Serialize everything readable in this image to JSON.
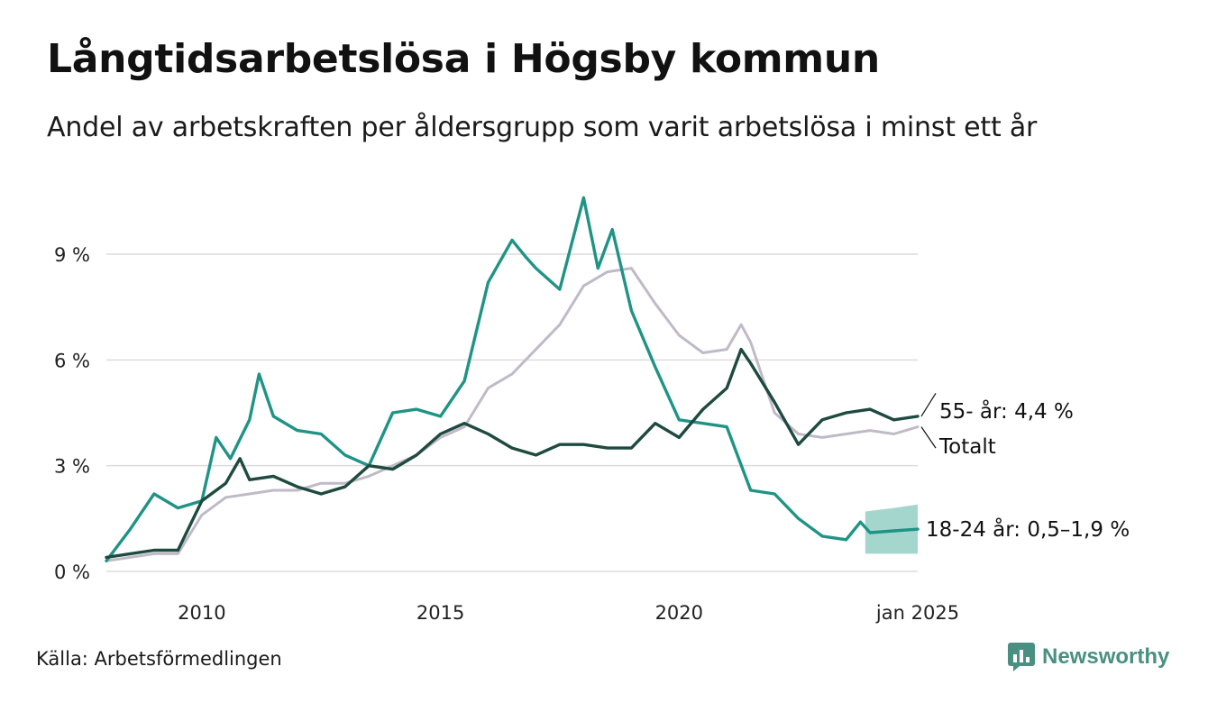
{
  "title": "Långtidsarbetslösa i Högsby kommun",
  "subtitle": "Andel av arbetskraften per åldersgrupp som varit arbetslösa i minst ett år",
  "source": "Källa: Arbetsförmedlingen",
  "brand": {
    "name": "Newsworthy",
    "icon": "newsworthy-logo-icon",
    "color": "#4a9082"
  },
  "chart_data": {
    "type": "line",
    "title": "Långtidsarbetslösa i Högsby kommun",
    "subtitle": "Andel av arbetskraften per åldersgrupp som varit arbetslösa i minst ett år",
    "xlabel": "",
    "ylabel": "",
    "x_unit": "year",
    "xlim": [
      2008.0,
      2025.0
    ],
    "ylim": [
      0,
      11
    ],
    "y_ticks": [
      {
        "value": 0,
        "label": "0 %"
      },
      {
        "value": 3,
        "label": "3 %"
      },
      {
        "value": 6,
        "label": "6 %"
      },
      {
        "value": 9,
        "label": "9 %"
      }
    ],
    "x_ticks": [
      {
        "value": 2010,
        "label": "2010"
      },
      {
        "value": 2015,
        "label": "2015"
      },
      {
        "value": 2020,
        "label": "2020"
      },
      {
        "value": 2025,
        "label": "jan 2025"
      }
    ],
    "grid": "horizontal",
    "legend": "end-of-line labels",
    "series": [
      {
        "name": "Totalt",
        "label": "Totalt",
        "color": "#c0bac8",
        "points": [
          [
            2008.0,
            0.3
          ],
          [
            2008.5,
            0.4
          ],
          [
            2009.0,
            0.5
          ],
          [
            2009.5,
            0.5
          ],
          [
            2010.0,
            1.6
          ],
          [
            2010.5,
            2.1
          ],
          [
            2011.0,
            2.2
          ],
          [
            2011.5,
            2.3
          ],
          [
            2012.0,
            2.3
          ],
          [
            2012.5,
            2.5
          ],
          [
            2013.0,
            2.5
          ],
          [
            2013.5,
            2.7
          ],
          [
            2014.0,
            3.0
          ],
          [
            2014.5,
            3.3
          ],
          [
            2015.0,
            3.8
          ],
          [
            2015.5,
            4.1
          ],
          [
            2016.0,
            5.2
          ],
          [
            2016.5,
            5.6
          ],
          [
            2017.0,
            6.3
          ],
          [
            2017.5,
            7.0
          ],
          [
            2018.0,
            8.1
          ],
          [
            2018.5,
            8.5
          ],
          [
            2019.0,
            8.6
          ],
          [
            2019.5,
            7.6
          ],
          [
            2020.0,
            6.7
          ],
          [
            2020.5,
            6.2
          ],
          [
            2021.0,
            6.3
          ],
          [
            2021.3,
            7.0
          ],
          [
            2021.5,
            6.5
          ],
          [
            2022.0,
            4.5
          ],
          [
            2022.5,
            3.9
          ],
          [
            2023.0,
            3.8
          ],
          [
            2023.5,
            3.9
          ],
          [
            2024.0,
            4.0
          ],
          [
            2024.5,
            3.9
          ],
          [
            2025.0,
            4.1
          ]
        ]
      },
      {
        "name": "55- år",
        "label": "55- år: 4,4 %",
        "color": "#1e4a3f",
        "points": [
          [
            2008.0,
            0.4
          ],
          [
            2008.5,
            0.5
          ],
          [
            2009.0,
            0.6
          ],
          [
            2009.5,
            0.6
          ],
          [
            2010.0,
            2.0
          ],
          [
            2010.5,
            2.5
          ],
          [
            2010.8,
            3.2
          ],
          [
            2011.0,
            2.6
          ],
          [
            2011.5,
            2.7
          ],
          [
            2012.0,
            2.4
          ],
          [
            2012.5,
            2.2
          ],
          [
            2013.0,
            2.4
          ],
          [
            2013.5,
            3.0
          ],
          [
            2014.0,
            2.9
          ],
          [
            2014.5,
            3.3
          ],
          [
            2015.0,
            3.9
          ],
          [
            2015.5,
            4.2
          ],
          [
            2016.0,
            3.9
          ],
          [
            2016.5,
            3.5
          ],
          [
            2017.0,
            3.3
          ],
          [
            2017.5,
            3.6
          ],
          [
            2018.0,
            3.6
          ],
          [
            2018.5,
            3.5
          ],
          [
            2019.0,
            3.5
          ],
          [
            2019.5,
            4.2
          ],
          [
            2020.0,
            3.8
          ],
          [
            2020.5,
            4.6
          ],
          [
            2021.0,
            5.2
          ],
          [
            2021.3,
            6.3
          ],
          [
            2021.5,
            5.9
          ],
          [
            2022.0,
            4.8
          ],
          [
            2022.5,
            3.6
          ],
          [
            2023.0,
            4.3
          ],
          [
            2023.5,
            4.5
          ],
          [
            2024.0,
            4.6
          ],
          [
            2024.5,
            4.3
          ],
          [
            2025.0,
            4.4
          ]
        ]
      },
      {
        "name": "18-24 år",
        "label": "18-24 år: 0,5–1,9 %",
        "color": "#1f9485",
        "band_color": "#94cfc5",
        "points": [
          [
            2008.0,
            0.3
          ],
          [
            2008.5,
            1.2
          ],
          [
            2009.0,
            2.2
          ],
          [
            2009.5,
            1.8
          ],
          [
            2010.0,
            2.0
          ],
          [
            2010.3,
            3.8
          ],
          [
            2010.6,
            3.2
          ],
          [
            2011.0,
            4.3
          ],
          [
            2011.2,
            5.6
          ],
          [
            2011.5,
            4.4
          ],
          [
            2012.0,
            4.0
          ],
          [
            2012.5,
            3.9
          ],
          [
            2013.0,
            3.3
          ],
          [
            2013.5,
            3.0
          ],
          [
            2014.0,
            4.5
          ],
          [
            2014.5,
            4.6
          ],
          [
            2015.0,
            4.4
          ],
          [
            2015.5,
            5.4
          ],
          [
            2016.0,
            8.2
          ],
          [
            2016.5,
            9.4
          ],
          [
            2016.8,
            8.9
          ],
          [
            2017.0,
            8.6
          ],
          [
            2017.5,
            8.0
          ],
          [
            2018.0,
            10.6
          ],
          [
            2018.3,
            8.6
          ],
          [
            2018.6,
            9.7
          ],
          [
            2019.0,
            7.4
          ],
          [
            2019.5,
            5.8
          ],
          [
            2020.0,
            4.3
          ],
          [
            2020.5,
            4.2
          ],
          [
            2021.0,
            4.1
          ],
          [
            2021.5,
            2.3
          ],
          [
            2022.0,
            2.2
          ],
          [
            2022.5,
            1.5
          ],
          [
            2023.0,
            1.0
          ],
          [
            2023.5,
            0.9
          ],
          [
            2023.8,
            1.4
          ],
          [
            2024.0,
            1.1
          ],
          [
            2024.5,
            1.15
          ],
          [
            2025.0,
            1.2
          ]
        ],
        "band": [
          [
            2023.9,
            0.5,
            1.7
          ],
          [
            2024.5,
            0.5,
            1.8
          ],
          [
            2025.0,
            0.5,
            1.9
          ]
        ]
      }
    ]
  }
}
